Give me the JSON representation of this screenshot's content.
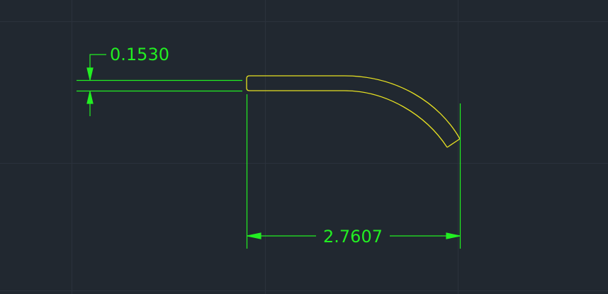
{
  "drawing": {
    "background_color": "#212830",
    "grid_color": "#2c333d",
    "geometry_color": "#e6e022",
    "dimension_color": "#22ee22"
  },
  "dimensions": {
    "thickness": {
      "text": "0.1530",
      "value": 0.153
    },
    "length": {
      "text": "2.7607",
      "value": 2.7607
    }
  }
}
